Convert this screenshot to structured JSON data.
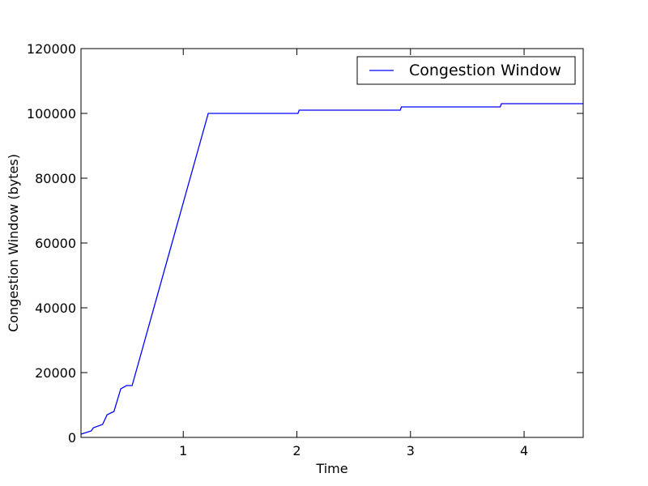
{
  "chart_data": {
    "type": "line",
    "title": "",
    "xlabel": "Time",
    "ylabel": "Congestion Window (bytes)",
    "xlim": [
      0.1,
      4.52
    ],
    "ylim": [
      0,
      120000
    ],
    "xticks": [
      1,
      2,
      3,
      4
    ],
    "xtick_labels": [
      "1",
      "2",
      "3",
      "4"
    ],
    "yticks": [
      0,
      20000,
      40000,
      60000,
      80000,
      100000,
      120000
    ],
    "ytick_labels": [
      "0",
      "20000",
      "40000",
      "60000",
      "80000",
      "100000",
      "120000"
    ],
    "grid": false,
    "legend_position": "top-right",
    "series": [
      {
        "name": "Congestion Window",
        "color": "#0000ff",
        "x": [
          0.1,
          0.19,
          0.21,
          0.29,
          0.33,
          0.39,
          0.45,
          0.5,
          0.55,
          1.22,
          2.01,
          2.02,
          2.91,
          2.92,
          3.79,
          3.8,
          4.52
        ],
        "y": [
          1000,
          2000,
          3000,
          4000,
          7000,
          8000,
          15000,
          16000,
          16000,
          100000,
          100000,
          101000,
          101000,
          102000,
          102000,
          103000,
          103000
        ]
      }
    ]
  }
}
